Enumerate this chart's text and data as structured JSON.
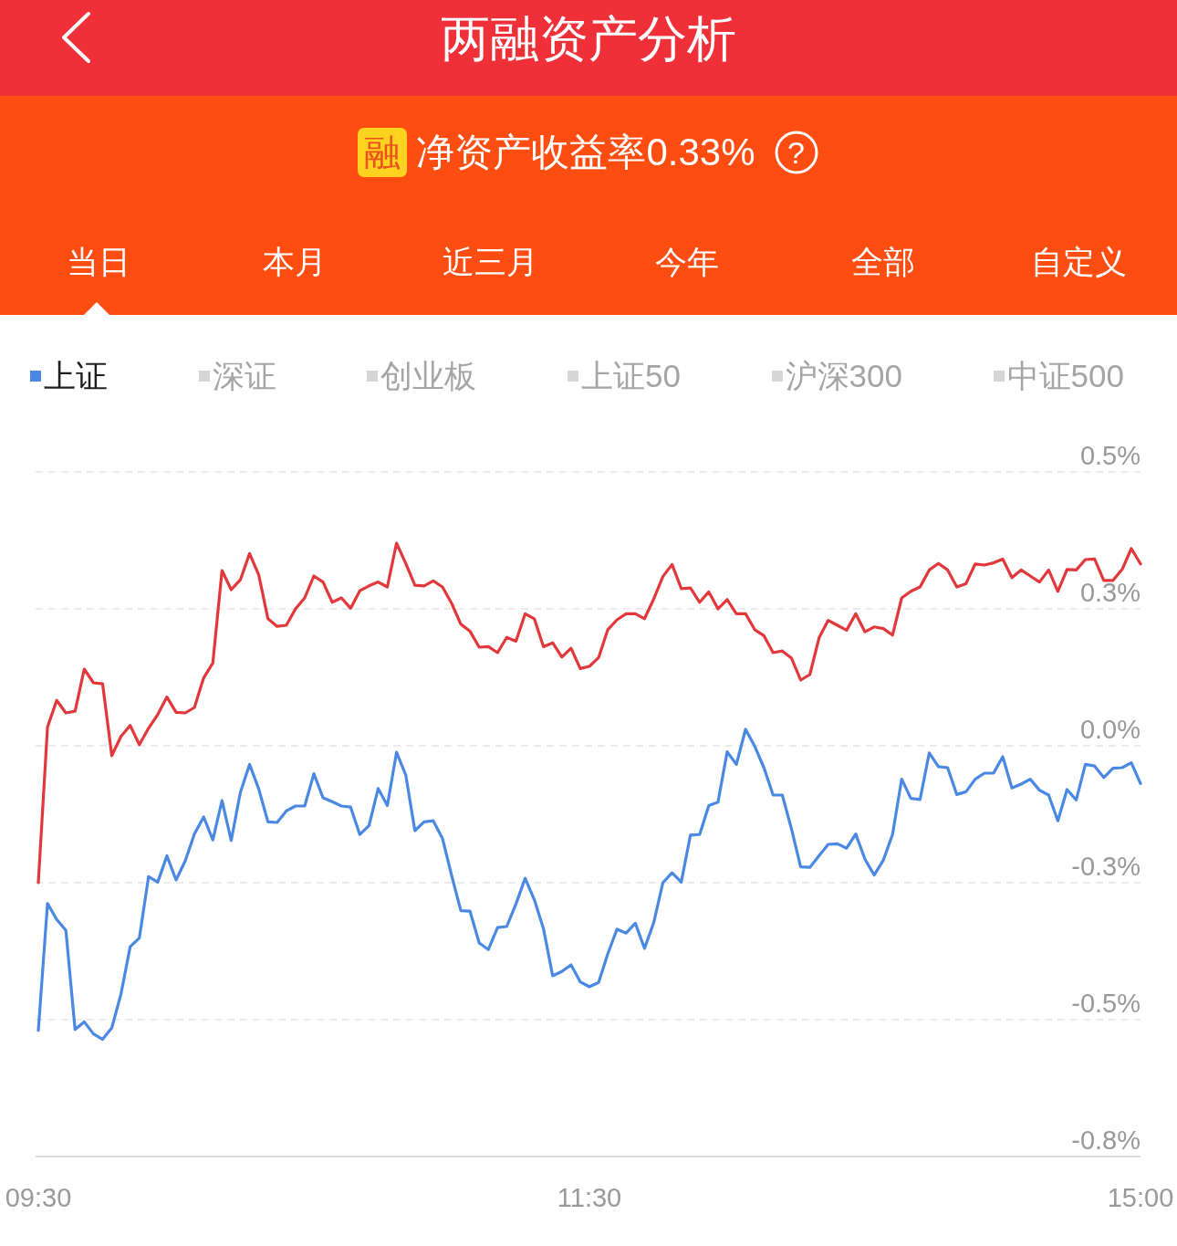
{
  "chart_data": [
    {
      "type": "other",
      "title": "两融资产分析",
      "annotations": [
        "融",
        "净资产收益率0.33%",
        "?",
        "当日",
        "本月",
        "近三月",
        "今年",
        "全部",
        "自定义"
      ]
    },
    {
      "type": "line",
      "categories": [
        "09:30",
        null,
        null,
        null,
        null,
        null,
        null,
        null,
        null,
        null,
        null,
        null,
        null,
        null,
        null,
        null,
        null,
        null,
        null,
        null,
        null,
        null,
        null,
        null,
        null,
        null,
        null,
        null,
        null,
        null,
        null,
        null,
        null,
        null,
        null,
        null,
        null,
        null,
        null,
        null,
        null,
        null,
        null,
        null,
        null,
        null,
        null,
        null,
        null,
        null,
        null,
        null,
        null,
        null,
        null,
        null,
        null,
        null,
        null,
        null,
        "11:30",
        null,
        null,
        null,
        null,
        null,
        null,
        null,
        null,
        null,
        null,
        null,
        null,
        null,
        null,
        null,
        null,
        null,
        null,
        null,
        null,
        null,
        null,
        null,
        null,
        null,
        null,
        null,
        null,
        null,
        null,
        null,
        null,
        null,
        null,
        null,
        null,
        null,
        null,
        null,
        null,
        null,
        null,
        null,
        null,
        null,
        null,
        null,
        null,
        null,
        null,
        null,
        null,
        null,
        null,
        null,
        null,
        null,
        null,
        null,
        "15:00"
      ],
      "series": [
        {
          "name": "上证",
          "color": "#4a88e3",
          "values": [
            -0.52,
            -0.288,
            -0.317,
            -0.337,
            -0.518,
            -0.504,
            -0.526,
            -0.536,
            -0.515,
            -0.453,
            -0.367,
            -0.351,
            -0.239,
            -0.249,
            -0.201,
            -0.245,
            -0.21,
            -0.161,
            -0.13,
            -0.172,
            -0.1,
            -0.173,
            -0.085,
            -0.034,
            -0.079,
            -0.139,
            -0.14,
            -0.119,
            -0.11,
            -0.11,
            -0.051,
            -0.095,
            -0.102,
            -0.11,
            -0.112,
            -0.162,
            -0.146,
            -0.078,
            -0.109,
            -0.012,
            -0.053,
            -0.155,
            -0.139,
            -0.137,
            -0.169,
            -0.237,
            -0.301,
            -0.302,
            -0.36,
            -0.372,
            -0.332,
            -0.33,
            -0.289,
            -0.242,
            -0.281,
            -0.334,
            -0.42,
            -0.412,
            -0.4,
            -0.431,
            -0.44,
            -0.432,
            -0.38,
            -0.335,
            -0.342,
            -0.324,
            -0.37,
            -0.323,
            -0.25,
            -0.232,
            -0.249,
            -0.163,
            -0.162,
            -0.109,
            -0.103,
            -0.011,
            -0.034,
            0.03,
            -0.001,
            -0.04,
            -0.09,
            -0.09,
            -0.152,
            -0.221,
            -0.222,
            -0.201,
            -0.18,
            -0.179,
            -0.187,
            -0.161,
            -0.207,
            -0.236,
            -0.209,
            -0.162,
            -0.061,
            -0.096,
            -0.098,
            -0.013,
            -0.038,
            -0.04,
            -0.089,
            -0.084,
            -0.061,
            -0.05,
            -0.05,
            -0.02,
            -0.077,
            -0.07,
            -0.061,
            -0.081,
            -0.09,
            -0.137,
            -0.08,
            -0.099,
            -0.034,
            -0.037,
            -0.058,
            -0.041,
            -0.04,
            -0.031,
            -0.069
          ]
        },
        {
          "color": "#e2383c",
          "values": [
            -0.25,
            0.034,
            0.083,
            0.06,
            0.063,
            0.14,
            0.115,
            0.113,
            -0.018,
            0.017,
            0.037,
            0.002,
            0.032,
            0.057,
            0.089,
            0.061,
            0.06,
            0.07,
            0.124,
            0.151,
            0.32,
            0.285,
            0.303,
            0.351,
            0.312,
            0.232,
            0.218,
            0.22,
            0.25,
            0.27,
            0.31,
            0.299,
            0.262,
            0.27,
            0.251,
            0.283,
            0.292,
            0.299,
            0.29,
            0.37,
            0.333,
            0.293,
            0.292,
            0.301,
            0.29,
            0.26,
            0.222,
            0.209,
            0.18,
            0.181,
            0.17,
            0.198,
            0.191,
            0.241,
            0.232,
            0.181,
            0.188,
            0.162,
            0.178,
            0.141,
            0.145,
            0.161,
            0.212,
            0.23,
            0.241,
            0.241,
            0.232,
            0.268,
            0.309,
            0.331,
            0.287,
            0.288,
            0.262,
            0.281,
            0.25,
            0.267,
            0.241,
            0.241,
            0.212,
            0.201,
            0.17,
            0.173,
            0.16,
            0.12,
            0.13,
            0.197,
            0.229,
            0.22,
            0.211,
            0.241,
            0.208,
            0.217,
            0.214,
            0.202,
            0.27,
            0.282,
            0.29,
            0.321,
            0.333,
            0.321,
            0.29,
            0.296,
            0.332,
            0.33,
            0.334,
            0.341,
            0.307,
            0.321,
            0.31,
            0.299,
            0.321,
            0.282,
            0.322,
            0.321,
            0.34,
            0.341,
            0.302,
            0.302,
            0.322,
            0.36,
            0.332
          ]
        }
      ],
      "annotations": [
        "深证",
        "创业板",
        "上证50",
        "沪深300",
        "中证500"
      ],
      "ylim": [
        -0.75,
        0.5
      ],
      "yticks": [
        {
          "value": 0.5,
          "label": "0.5%"
        },
        {
          "value": 0.25,
          "label": "0.3%"
        },
        {
          "value": 0,
          "label": "0.0%"
        },
        {
          "value": -0.25,
          "label": "-0.3%"
        },
        {
          "value": -0.5,
          "label": "-0.5%"
        },
        {
          "value": -0.75,
          "label": "-0.8%"
        }
      ],
      "grid": "y",
      "legend": "top"
    }
  ]
}
